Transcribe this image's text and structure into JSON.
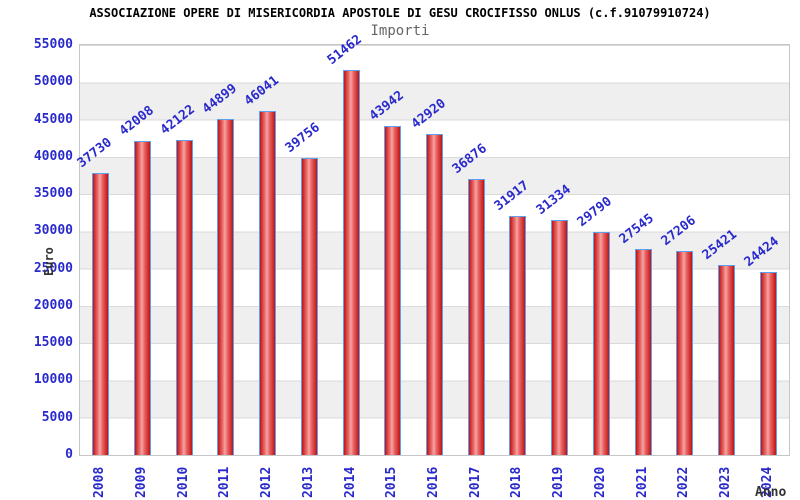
{
  "chart_data": {
    "type": "bar",
    "title": "ASSOCIAZIONE OPERE DI MISERICORDIA APOSTOLE DI GESU CROCIFISSO ONLUS (c.f.91079910724)",
    "subtitle": "Importi",
    "xlabel": "Anno",
    "ylabel": "Euro",
    "categories": [
      "2008",
      "2009",
      "2010",
      "2011",
      "2012",
      "2013",
      "2014",
      "2015",
      "2016",
      "2017",
      "2018",
      "2019",
      "2020",
      "2021",
      "2022",
      "2023",
      "2024"
    ],
    "values": [
      37730,
      42008,
      42122,
      44899,
      46041,
      39756,
      51462,
      43942,
      42920,
      36876,
      31917,
      31334,
      29790,
      27545,
      27206,
      25421,
      24424
    ],
    "ylim": [
      0,
      55000
    ],
    "yticks": [
      0,
      5000,
      10000,
      15000,
      20000,
      25000,
      30000,
      35000,
      40000,
      45000,
      50000,
      55000
    ],
    "grid": true,
    "legend": "none",
    "bar_value_labels_rotated": true,
    "x_tick_labels_rotated": true
  },
  "colors": {
    "label_blue": "#2a2acc",
    "bar_edge": "#c11212",
    "bar_mid": "#e96868",
    "bar_center": "#f8a3a3",
    "bar_border": "#5ca0f0",
    "band_gray": "#efefef",
    "grid_line": "#dadada",
    "plot_border": "#c6c6c6",
    "title_color": "#000000",
    "subtitle_color": "#666666",
    "axis_title_color": "#333333"
  }
}
